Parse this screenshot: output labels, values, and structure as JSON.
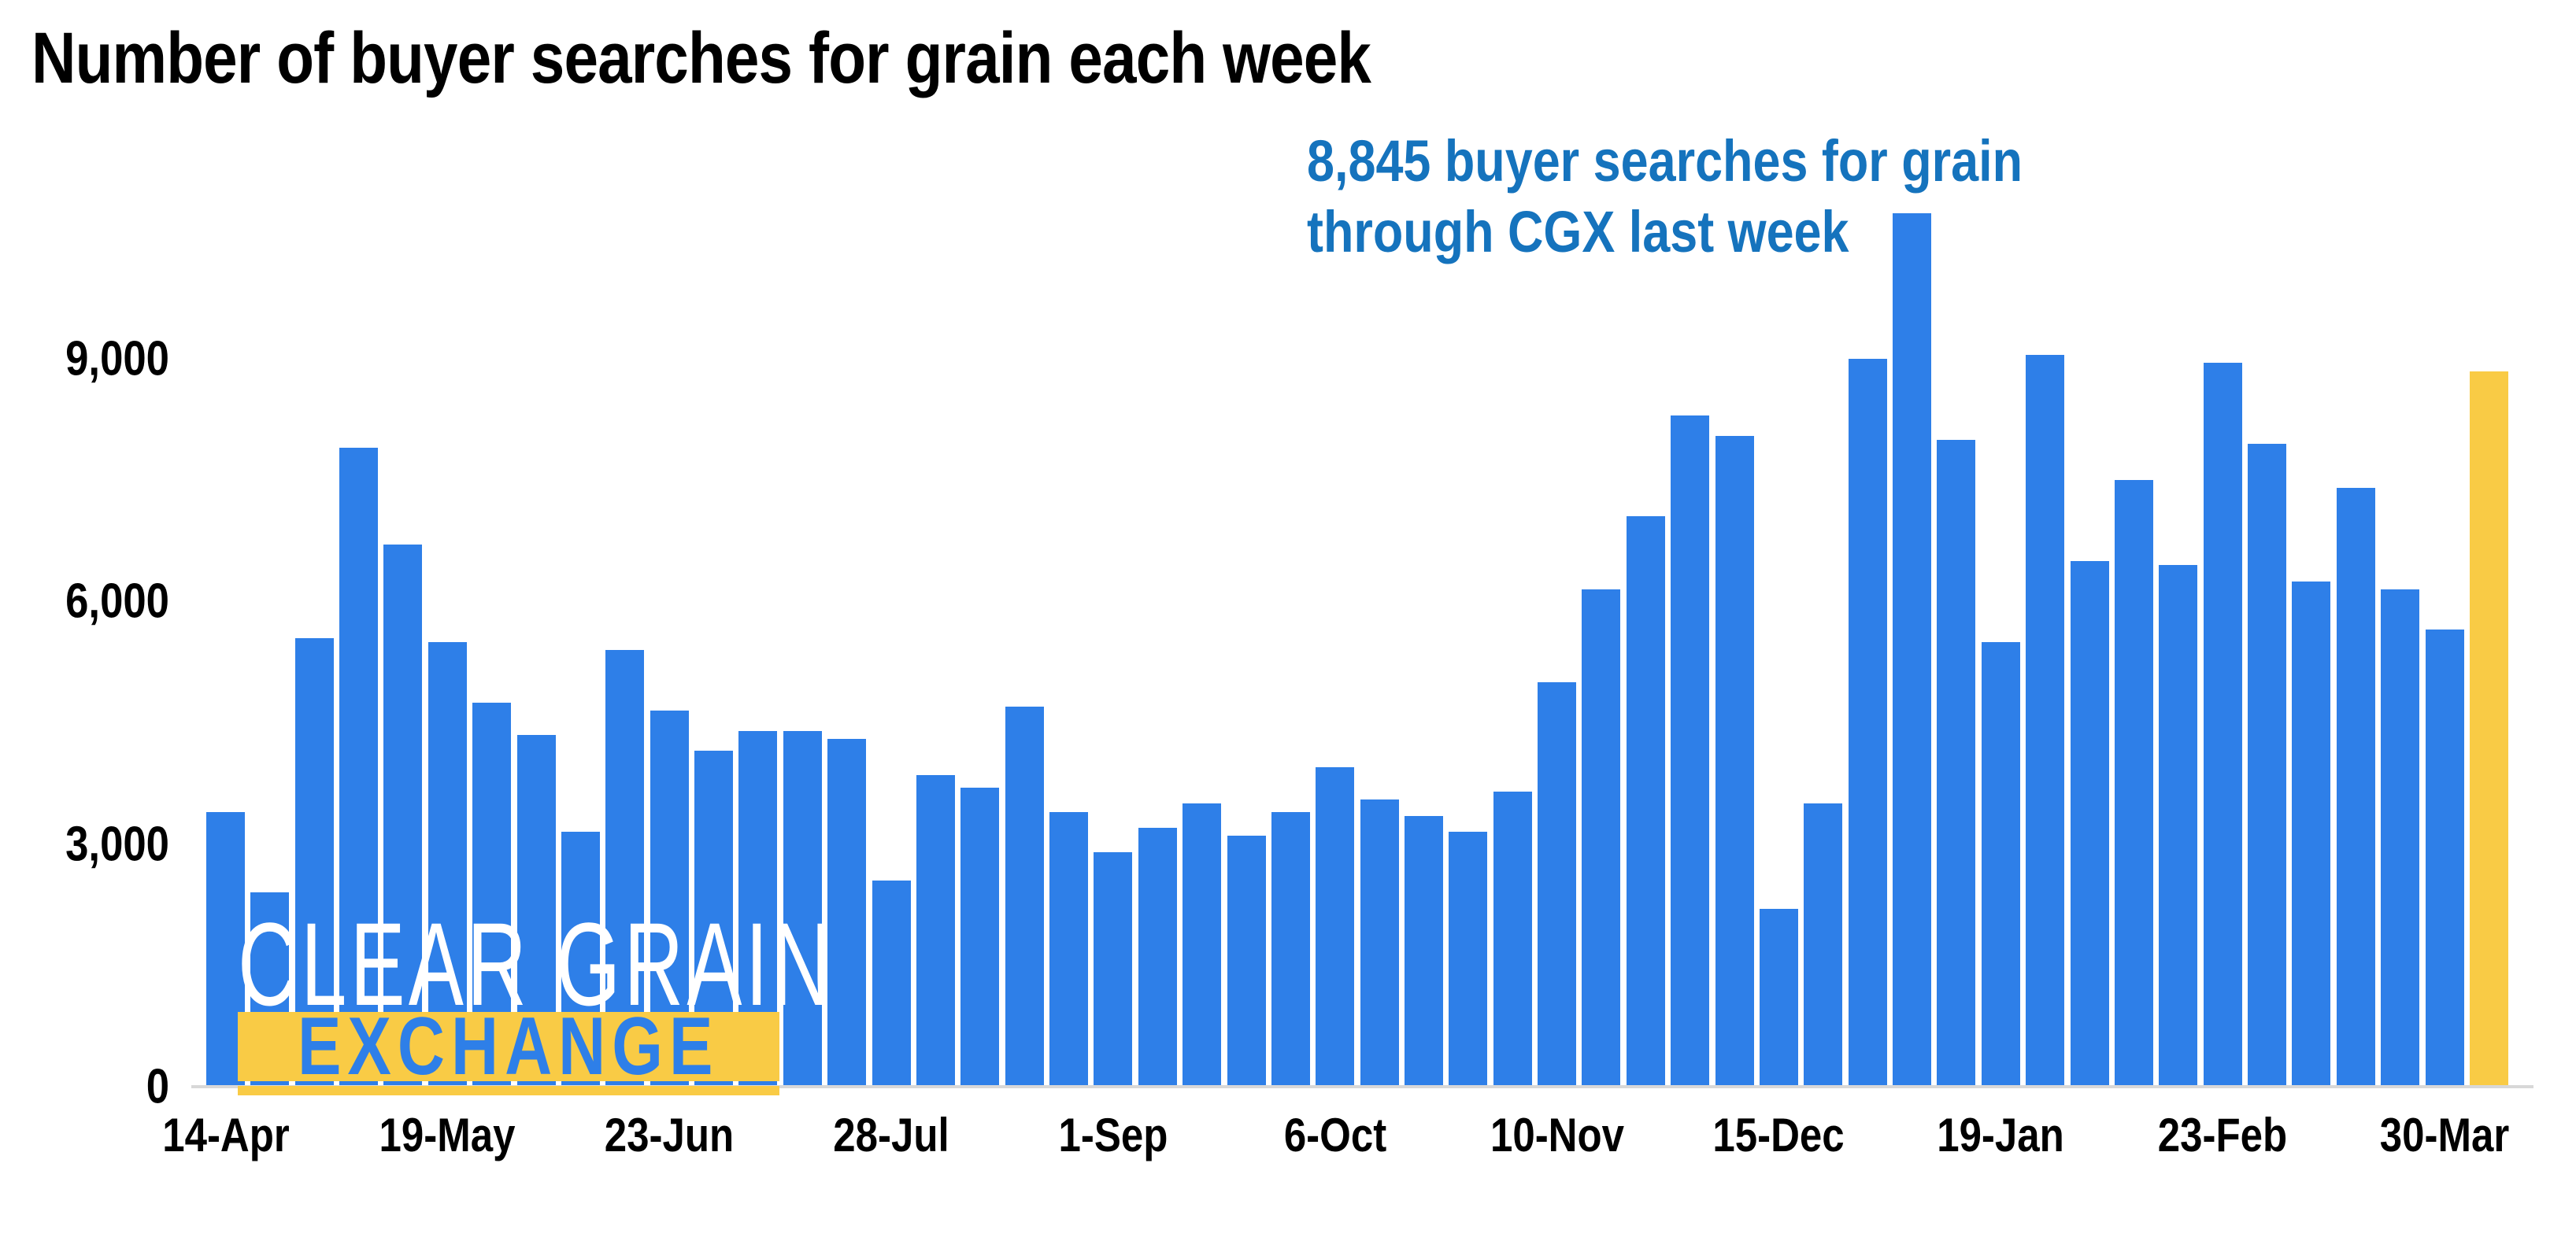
{
  "title": "Number of buyer searches for grain each week",
  "annotation": {
    "line1": "8,845 buyer searches for grain",
    "line2": "through CGX last week",
    "color": "#1573BD"
  },
  "watermark": {
    "line1": "CLEAR GRAIN",
    "line2": "EXCHANGE"
  },
  "colors": {
    "bar_blue": "#2E7FE8",
    "bar_highlight_yellow": "#F9CB45",
    "annotation_blue": "#1573BD",
    "axis_line_gray": "#D8D8D8",
    "text_black": "#000000",
    "watermark_white": "#FFFFFF"
  },
  "chart_data": {
    "type": "bar",
    "title": "Number of buyer searches for grain each week",
    "n_bars": 52,
    "values": [
      3400,
      2400,
      5550,
      7900,
      6700,
      5500,
      4750,
      4350,
      3150,
      5400,
      4650,
      4150,
      4400,
      4400,
      4300,
      2550,
      3850,
      3700,
      4700,
      3400,
      2900,
      3200,
      3500,
      3100,
      3400,
      3950,
      3550,
      3350,
      3150,
      3650,
      5000,
      6150,
      7050,
      8300,
      8050,
      2200,
      3500,
      9000,
      10800,
      8000,
      5500,
      9050,
      6500,
      7500,
      6450,
      8950,
      7950,
      6250,
      7400,
      6150,
      5650,
      8845
    ],
    "highlight_index": 51,
    "highlight_value_label": "8,845",
    "x_tick_labels": [
      "14-Apr",
      "19-May",
      "23-Jun",
      "28-Jul",
      "1-Sep",
      "6-Oct",
      "10-Nov",
      "15-Dec",
      "19-Jan",
      "23-Feb",
      "30-Mar"
    ],
    "x_tick_positions": [
      0,
      5,
      10,
      15,
      20,
      25,
      30,
      35,
      40,
      45,
      50
    ],
    "y_ticks": [
      0,
      3000,
      6000,
      9000
    ],
    "y_tick_labels": [
      "0",
      "3,000",
      "6,000",
      "9,000"
    ],
    "ylim": [
      0,
      11200
    ],
    "grid": "off",
    "legend": "none",
    "xlabel": "",
    "ylabel": ""
  }
}
